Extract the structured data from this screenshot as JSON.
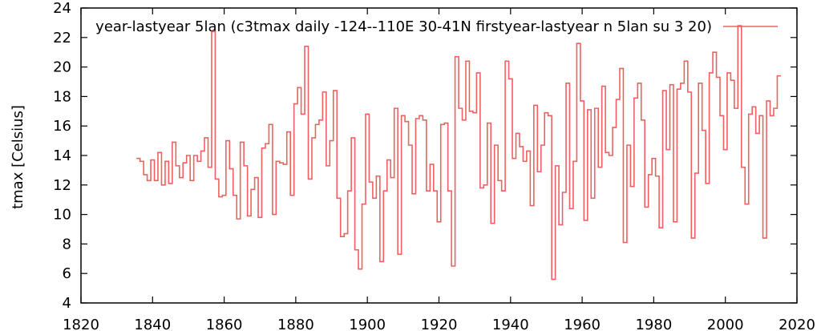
{
  "chart_data": {
    "type": "line",
    "title": "",
    "xlabel": "",
    "ylabel": "tmax [Celsius]",
    "xlim": [
      1820,
      2020
    ],
    "ylim": [
      4,
      24
    ],
    "x_ticks": [
      "1820",
      "1840",
      "1860",
      "1880",
      "1900",
      "1920",
      "1940",
      "1960",
      "1980",
      "2000",
      "2020"
    ],
    "y_ticks": [
      "4",
      "6",
      "8",
      "10",
      "12",
      "14",
      "16",
      "18",
      "20",
      "22",
      "24"
    ],
    "grid": false,
    "legend_position": "top-right",
    "colors": {
      "series": "#f06060",
      "axis": "#000000"
    },
    "series": [
      {
        "name": "year-lastyear 5lan (c3tmax daily -124--110E 30-41N firstyear-lastyear n 5lan su 3 20)",
        "step": true,
        "x": [
          1836,
          1837,
          1838,
          1839,
          1840,
          1841,
          1842,
          1843,
          1844,
          1845,
          1846,
          1847,
          1848,
          1849,
          1850,
          1851,
          1852,
          1853,
          1854,
          1855,
          1856,
          1857,
          1858,
          1859,
          1860,
          1861,
          1862,
          1863,
          1864,
          1865,
          1866,
          1867,
          1868,
          1869,
          1870,
          1871,
          1872,
          1873,
          1874,
          1875,
          1876,
          1877,
          1878,
          1879,
          1880,
          1881,
          1882,
          1883,
          1884,
          1885,
          1886,
          1887,
          1888,
          1889,
          1890,
          1891,
          1892,
          1893,
          1894,
          1895,
          1896,
          1897,
          1898,
          1899,
          1900,
          1901,
          1902,
          1903,
          1904,
          1905,
          1906,
          1907,
          1908,
          1909,
          1910,
          1911,
          1912,
          1913,
          1914,
          1915,
          1916,
          1917,
          1918,
          1919,
          1920,
          1921,
          1922,
          1923,
          1924,
          1925,
          1926,
          1927,
          1928,
          1929,
          1930,
          1931,
          1932,
          1933,
          1934,
          1935,
          1936,
          1937,
          1938,
          1939,
          1940,
          1941,
          1942,
          1943,
          1944,
          1945,
          1946,
          1947,
          1948,
          1949,
          1950,
          1951,
          1952,
          1953,
          1954,
          1955,
          1956,
          1957,
          1958,
          1959,
          1960,
          1961,
          1962,
          1963,
          1964,
          1965,
          1966,
          1967,
          1968,
          1969,
          1970,
          1971,
          1972,
          1973,
          1974,
          1975,
          1976,
          1977,
          1978,
          1979,
          1980,
          1981,
          1982,
          1983,
          1984,
          1985,
          1986,
          1987,
          1988,
          1989,
          1990,
          1991,
          1992,
          1993,
          1994,
          1995,
          1996,
          1997,
          1998,
          1999,
          2000,
          2001,
          2002,
          2003,
          2004,
          2005,
          2006,
          2007,
          2008,
          2009,
          2010,
          2011,
          2012,
          2013,
          2014,
          2015
        ],
        "values": [
          13.8,
          13.6,
          12.7,
          12.3,
          13.7,
          12.3,
          14.2,
          12.0,
          13.6,
          12.1,
          14.9,
          13.3,
          12.5,
          13.5,
          14.0,
          12.3,
          14.0,
          13.6,
          14.3,
          15.2,
          13.2,
          22.4,
          12.4,
          11.2,
          11.3,
          15.0,
          13.1,
          11.3,
          9.7,
          14.9,
          13.3,
          9.9,
          11.7,
          12.5,
          9.8,
          14.5,
          14.8,
          16.1,
          10.0,
          13.6,
          13.5,
          13.4,
          15.6,
          11.3,
          17.5,
          18.6,
          16.8,
          21.4,
          12.4,
          15.2,
          16.1,
          16.4,
          18.3,
          13.3,
          15.0,
          18.4,
          11.1,
          8.5,
          8.7,
          11.6,
          15.2,
          7.6,
          6.3,
          10.7,
          16.8,
          12.2,
          11.1,
          12.6,
          6.8,
          11.6,
          13.7,
          12.5,
          17.2,
          7.3,
          16.7,
          16.3,
          14.7,
          11.4,
          16.5,
          16.7,
          16.4,
          11.6,
          13.4,
          11.6,
          9.5,
          16.1,
          16.2,
          11.6,
          6.5,
          20.7,
          17.2,
          16.4,
          20.4,
          17.0,
          16.9,
          19.6,
          11.8,
          12.0,
          16.2,
          9.4,
          14.7,
          12.3,
          11.6,
          20.4,
          19.2,
          13.8,
          15.5,
          14.6,
          13.6,
          14.3,
          10.6,
          17.4,
          12.9,
          14.7,
          16.9,
          16.7,
          5.6,
          13.3,
          9.3,
          11.5,
          18.9,
          10.4,
          13.6,
          21.6,
          17.7,
          9.6,
          17.1,
          11.1,
          17.2,
          13.2,
          18.7,
          14.2,
          14.0,
          15.9,
          17.8,
          19.9,
          8.1,
          14.7,
          11.9,
          17.9,
          18.9,
          16.4,
          10.5,
          12.7,
          13.8,
          12.6,
          9.1,
          18.4,
          14.4,
          18.8,
          9.5,
          18.5,
          18.9,
          20.4,
          18.3,
          8.4,
          12.8,
          18.9,
          15.7,
          12.1,
          19.6,
          21.0,
          19.3,
          16.7,
          14.4,
          19.6,
          19.1,
          17.2,
          22.8,
          13.2,
          10.7,
          16.8,
          17.3,
          15.5,
          16.7,
          8.4,
          17.7,
          16.7,
          17.2,
          19.4
        ]
      }
    ]
  }
}
